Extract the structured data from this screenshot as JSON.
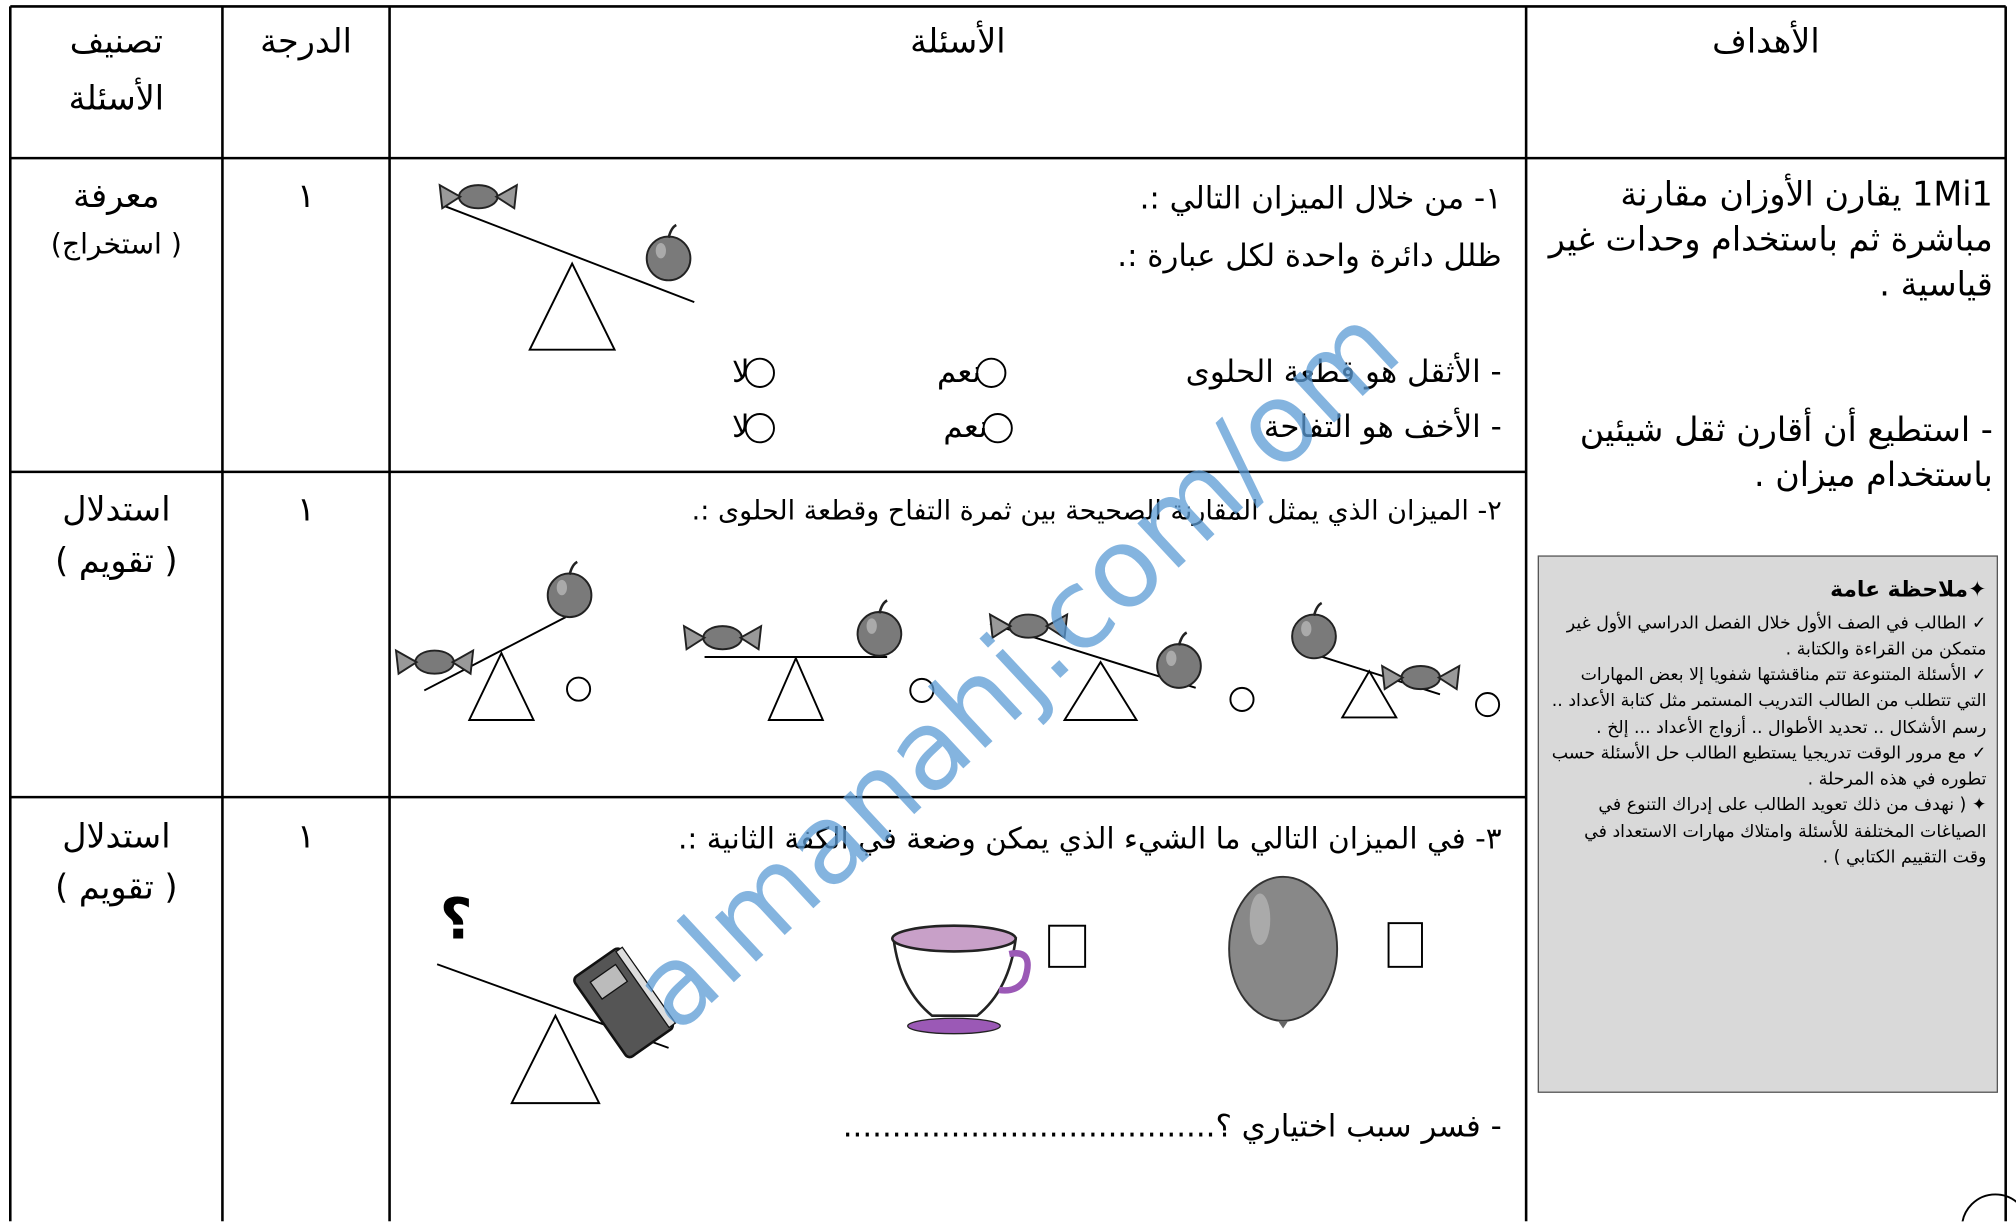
{
  "header": {
    "classification_1": "تصنيف",
    "classification_2": "الأسئلة",
    "grade": "الدرجة",
    "questions": "الأسئلة",
    "objectives": "الأهداف"
  },
  "rows": [
    {
      "classification": "معرفة",
      "sub": "( استخراج)",
      "grade": "١",
      "question": [
        "١- من خلال الميزان التالي :.",
        "ظلل دائرة واحدة لكل عبارة :."
      ],
      "statements": [
        "-   الأثقل هو قطعة الحلوى",
        "-   الأخف هو التفاحة"
      ],
      "options": [
        "نعم",
        "لا"
      ]
    },
    {
      "classification": "استدلال",
      "sub": "( تقويم )",
      "grade": "١",
      "question": [
        "٢- الميزان الذي يمثل المقارنة الصحيحة بين ثمرة التفاح وقطعة الحلوى :."
      ]
    },
    {
      "classification": "استدلال",
      "sub": "( تقويم )",
      "grade": "١",
      "question": [
        "٣- في الميزان التالي ما الشيء الذي يمكن وضعة في الكفة الثانية :."
      ],
      "mark": "؟",
      "explain": "- فسر سبب اختياري ؟......................................"
    }
  ],
  "objectives": [
    "1Mi1 يقارن الأوزان مقارنة مباشرة ثم باستخدام وحدات غير قياسية .",
    "- استطيع أن أقارن ثقل شيئين باستخدام ميزان ."
  ],
  "note": {
    "title": "✦ملاحظة عامة",
    "items": [
      "✓ الطالب في الصف الأول خلال الفصل الدراسي الأول غير متمكن من القراءة والكتابة .",
      "✓ الأسئلة المتنوعة تتم مناقشتها شفويا إلا بعض المهارات التي تتطلب من الطالب التدريب المستمر مثل كتابة الأعداد .. رسم الأشكال .. تحديد الأطوال .. أزواج الأعداد ... إلخ .",
      "✓ مع مرور الوقت تدريجيا يستطيع الطالب حل الأسئلة حسب تطوره في هذه المرحلة .",
      "✦ ( نهدف من ذلك تعويد الطالب على إدراك التنوع في الصياغات المختلفة للأسئلة وامتلاك مهارات الاستعداد في وقت التقييم الكتابي ) ."
    ]
  },
  "watermark": "almanahj.com/om"
}
